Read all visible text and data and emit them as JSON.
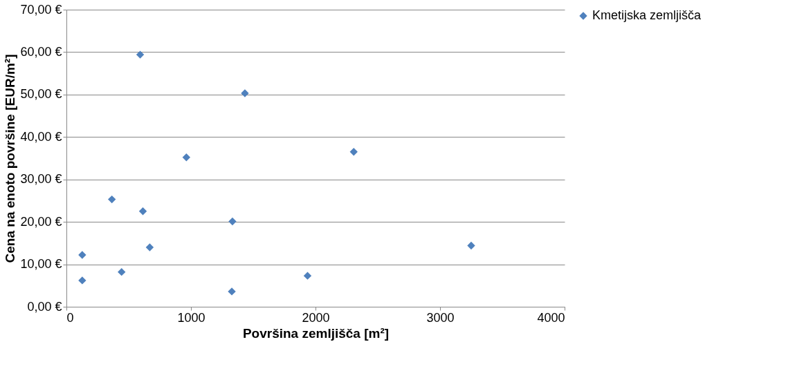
{
  "chart_data": {
    "type": "scatter",
    "xlabel": "Površina zemljišča [m²]",
    "ylabel": "Cena na enoto površine [EUR/m²]",
    "xlim": [
      0,
      4000
    ],
    "xticks": [
      0,
      1000,
      2000,
      3000,
      4000
    ],
    "ylim": [
      0,
      70
    ],
    "yticks": [
      {
        "value": 0,
        "label": "0,00 €"
      },
      {
        "value": 10,
        "label": "10,00 €"
      },
      {
        "value": 20,
        "label": "20,00 €"
      },
      {
        "value": 30,
        "label": "30,00 €"
      },
      {
        "value": 40,
        "label": "40,00 €"
      },
      {
        "value": 50,
        "label": "50,00 €"
      },
      {
        "value": 60,
        "label": "60,00 €"
      },
      {
        "value": 70,
        "label": "70,00 €"
      }
    ],
    "grid": "y",
    "legend": "right",
    "marker": "diamond",
    "series": [
      {
        "name": "Kmetijska zemljišča",
        "color": "#4f81bd",
        "x": [
          592,
          1433,
          963,
          2307,
          365,
          614,
          1333,
          127,
          669,
          3250,
          127,
          443,
          1328,
          1936
        ],
        "values": [
          59.4,
          50.3,
          35.2,
          36.5,
          25.3,
          22.5,
          20.1,
          12.2,
          14.0,
          14.4,
          6.2,
          8.2,
          3.6,
          7.3
        ]
      }
    ]
  }
}
